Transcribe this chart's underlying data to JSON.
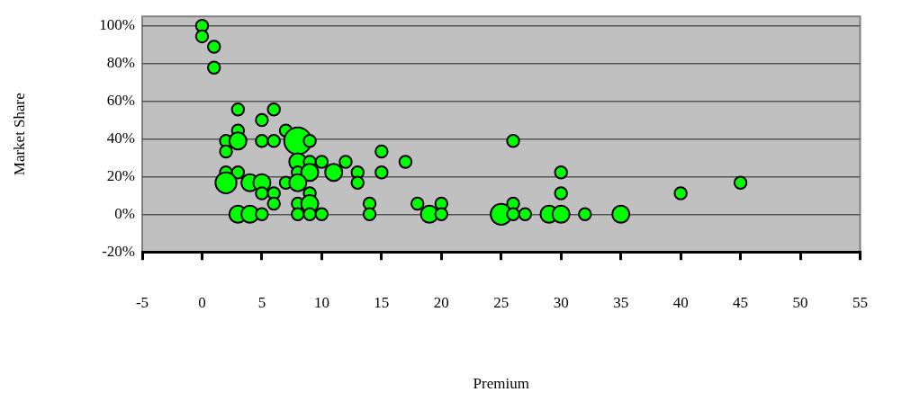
{
  "chart_data": {
    "type": "bubble",
    "xlabel": "Premium",
    "ylabel": "Market Share",
    "xlim": [
      -5,
      55
    ],
    "xticks": [
      -5,
      0,
      5,
      10,
      15,
      20,
      25,
      30,
      35,
      40,
      45,
      50,
      55
    ],
    "ylim": [
      -20,
      105
    ],
    "yticks": [
      {
        "value": -20,
        "label": "-20%"
      },
      {
        "value": 0,
        "label": "0%"
      },
      {
        "value": 20,
        "label": "20%"
      },
      {
        "value": 40,
        "label": "40%"
      },
      {
        "value": 60,
        "label": "60%"
      },
      {
        "value": 80,
        "label": "80%"
      },
      {
        "value": 100,
        "label": "100%"
      }
    ],
    "grid": "y",
    "legend": false,
    "marker": "circle",
    "series": [
      {
        "color": "#00ff00",
        "x": [
          0,
          0,
          1,
          1,
          3,
          6,
          5,
          3,
          7,
          2,
          3,
          5,
          6,
          8,
          9,
          2,
          8,
          9,
          10,
          12,
          2,
          3,
          8,
          9,
          11,
          13,
          2,
          4,
          5,
          7,
          8,
          13,
          5,
          6,
          9,
          6,
          8,
          9,
          14,
          3,
          4,
          5,
          8,
          9,
          10,
          14,
          15,
          17,
          15,
          26,
          30,
          30,
          18,
          20,
          19,
          20,
          25,
          26,
          26,
          27,
          29,
          30,
          32,
          35,
          40,
          45
        ],
        "values": [
          100,
          94.4,
          88.9,
          77.8,
          55.6,
          55.6,
          50,
          44.4,
          44.4,
          38.9,
          38.9,
          38.9,
          38.9,
          38.9,
          38.9,
          33.3,
          27.8,
          27.8,
          27.8,
          27.8,
          22.2,
          22.2,
          22.2,
          22.2,
          22.2,
          22.2,
          16.7,
          16.7,
          16.7,
          16.7,
          16.7,
          16.7,
          11.1,
          11.1,
          11.1,
          5.6,
          5.6,
          5.6,
          5.6,
          0,
          0,
          0,
          0,
          0,
          0,
          0,
          33.3,
          27.8,
          22.2,
          38.9,
          22.2,
          11.1,
          5.6,
          5.6,
          0,
          0,
          0,
          5.6,
          0,
          0,
          0,
          0,
          0,
          0,
          11.1,
          16.7
        ],
        "sizes": [
          0.2,
          0.2,
          0.2,
          0.2,
          0.2,
          0.2,
          0.2,
          0.2,
          0.2,
          0.2,
          0.4,
          0.2,
          0.2,
          1,
          0.2,
          0.2,
          0.4,
          0.2,
          0.2,
          0.2,
          0.2,
          0.2,
          0.2,
          0.4,
          0.4,
          0.2,
          0.6,
          0.4,
          0.4,
          0.2,
          0.4,
          0.2,
          0.2,
          0.2,
          0.2,
          0.2,
          0.2,
          0.4,
          0.2,
          0.4,
          0.4,
          0.2,
          0.2,
          0.2,
          0.2,
          0.2,
          0.2,
          0.2,
          0.2,
          0.2,
          0.2,
          0.2,
          0.2,
          0.2,
          0.4,
          0.2,
          0.6,
          0.2,
          0.2,
          0.2,
          0.4,
          0.4,
          0.2,
          0.4,
          0.2,
          0.2
        ]
      }
    ]
  }
}
